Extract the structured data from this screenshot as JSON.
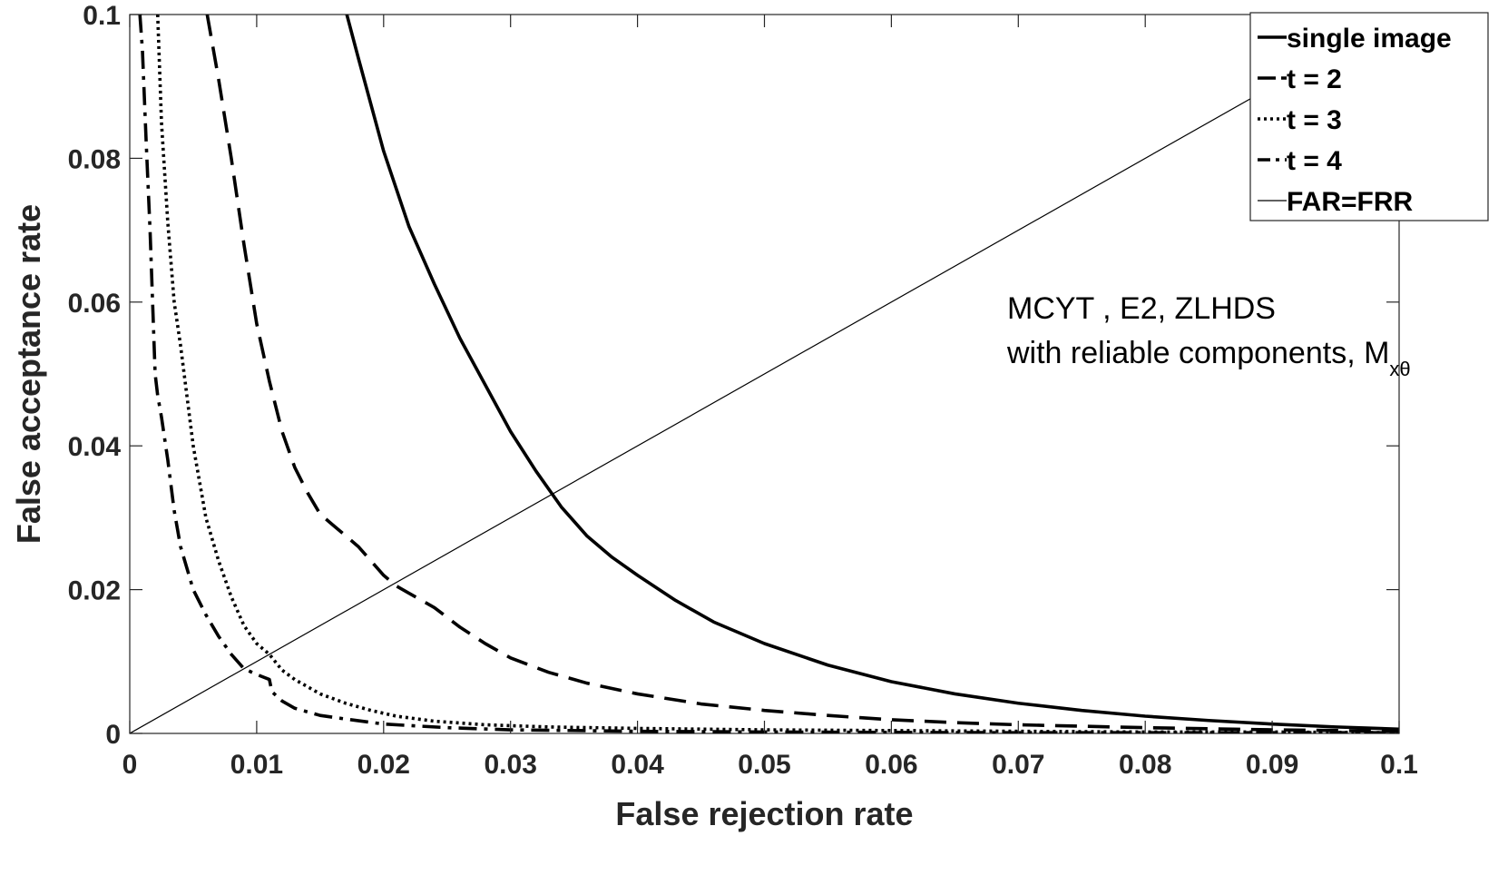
{
  "chart_data": {
    "type": "line",
    "title": "",
    "xlabel": "False rejection rate",
    "ylabel": "False acceptance rate",
    "xlim": [
      0,
      0.1
    ],
    "ylim": [
      0,
      0.1
    ],
    "grid": false,
    "legend_position": "top-right",
    "xticks": [
      0,
      0.01,
      0.02,
      0.03,
      0.04,
      0.05,
      0.06,
      0.07,
      0.08,
      0.09,
      0.1
    ],
    "xtick_labels": [
      "0",
      "0.01",
      "0.02",
      "0.03",
      "0.04",
      "0.05",
      "0.06",
      "0.07",
      "0.08",
      "0.09",
      "0.1"
    ],
    "yticks": [
      0,
      0.02,
      0.04,
      0.06,
      0.08,
      0.1
    ],
    "ytick_labels": [
      "0",
      "0.02",
      "0.04",
      "0.06",
      "0.08",
      "0.1"
    ],
    "annotation": {
      "line1": "MCYT , E2, ZLHDS",
      "line2_main": "with reliable components, M",
      "line2_sub": "xθ"
    },
    "series": [
      {
        "name": "single image",
        "style": "solid",
        "color": "#000000",
        "x": [
          0.0171,
          0.018,
          0.019,
          0.02,
          0.022,
          0.024,
          0.026,
          0.028,
          0.03,
          0.032,
          0.034,
          0.036,
          0.038,
          0.04,
          0.043,
          0.046,
          0.05,
          0.055,
          0.06,
          0.065,
          0.07,
          0.075,
          0.08,
          0.085,
          0.09,
          0.095,
          0.1
        ],
        "y": [
          0.1,
          0.094,
          0.0875,
          0.081,
          0.0705,
          0.0625,
          0.055,
          0.0485,
          0.042,
          0.0365,
          0.0315,
          0.0275,
          0.0245,
          0.022,
          0.0185,
          0.0155,
          0.0125,
          0.0095,
          0.0072,
          0.0055,
          0.0042,
          0.0032,
          0.0024,
          0.0018,
          0.0013,
          0.0009,
          0.0006
        ]
      },
      {
        "name": "t = 2",
        "style": "dashed",
        "color": "#000000",
        "x": [
          0.0061,
          0.007,
          0.008,
          0.009,
          0.01,
          0.011,
          0.012,
          0.013,
          0.014,
          0.015,
          0.016,
          0.017,
          0.018,
          0.019,
          0.02,
          0.021,
          0.022,
          0.024,
          0.026,
          0.028,
          0.03,
          0.033,
          0.036,
          0.04,
          0.045,
          0.05,
          0.055,
          0.06,
          0.065,
          0.07,
          0.08,
          0.09,
          0.1
        ],
        "y": [
          0.1,
          0.091,
          0.08,
          0.068,
          0.057,
          0.049,
          0.042,
          0.037,
          0.0335,
          0.0305,
          0.029,
          0.0275,
          0.026,
          0.024,
          0.022,
          0.0205,
          0.0195,
          0.0175,
          0.0148,
          0.0125,
          0.0105,
          0.0085,
          0.007,
          0.0055,
          0.0041,
          0.0032,
          0.0025,
          0.0019,
          0.0015,
          0.0012,
          0.0008,
          0.0005,
          0.0003
        ]
      },
      {
        "name": "t = 3",
        "style": "dotted",
        "color": "#000000",
        "x": [
          0.0022,
          0.0025,
          0.003,
          0.0035,
          0.004,
          0.005,
          0.006,
          0.007,
          0.008,
          0.009,
          0.01,
          0.011,
          0.012,
          0.013,
          0.014,
          0.015,
          0.017,
          0.019,
          0.021,
          0.024,
          0.028,
          0.033,
          0.04,
          0.05,
          0.06,
          0.07,
          0.08,
          0.09,
          0.1
        ],
        "y": [
          0.1,
          0.085,
          0.071,
          0.06,
          0.054,
          0.04,
          0.03,
          0.024,
          0.019,
          0.015,
          0.0125,
          0.011,
          0.0088,
          0.0075,
          0.0065,
          0.0055,
          0.0042,
          0.0032,
          0.0024,
          0.0017,
          0.0012,
          0.0009,
          0.0007,
          0.0005,
          0.0004,
          0.0003,
          0.0002,
          0.0002,
          0.0001
        ]
      },
      {
        "name": "t = 4",
        "style": "dashdot",
        "color": "#000000",
        "x": [
          0.0008,
          0.001,
          0.0013,
          0.0016,
          0.0018,
          0.002,
          0.0022,
          0.0025,
          0.003,
          0.0035,
          0.004,
          0.005,
          0.006,
          0.007,
          0.008,
          0.009,
          0.01,
          0.011,
          0.0112,
          0.012,
          0.013,
          0.015,
          0.017,
          0.02,
          0.025,
          0.03,
          0.04,
          0.05,
          0.07,
          0.1
        ],
        "y": [
          0.1,
          0.095,
          0.082,
          0.07,
          0.06,
          0.05,
          0.047,
          0.044,
          0.038,
          0.031,
          0.026,
          0.02,
          0.0165,
          0.0135,
          0.011,
          0.009,
          0.0082,
          0.0075,
          0.0058,
          0.0045,
          0.0035,
          0.0025,
          0.002,
          0.0013,
          0.0008,
          0.0005,
          0.0003,
          0.0002,
          0.0001,
          0.0001
        ]
      },
      {
        "name": "FAR=FRR",
        "style": "thin",
        "color": "#000000",
        "x": [
          0,
          0.1
        ],
        "y": [
          0,
          0.1
        ]
      }
    ]
  }
}
